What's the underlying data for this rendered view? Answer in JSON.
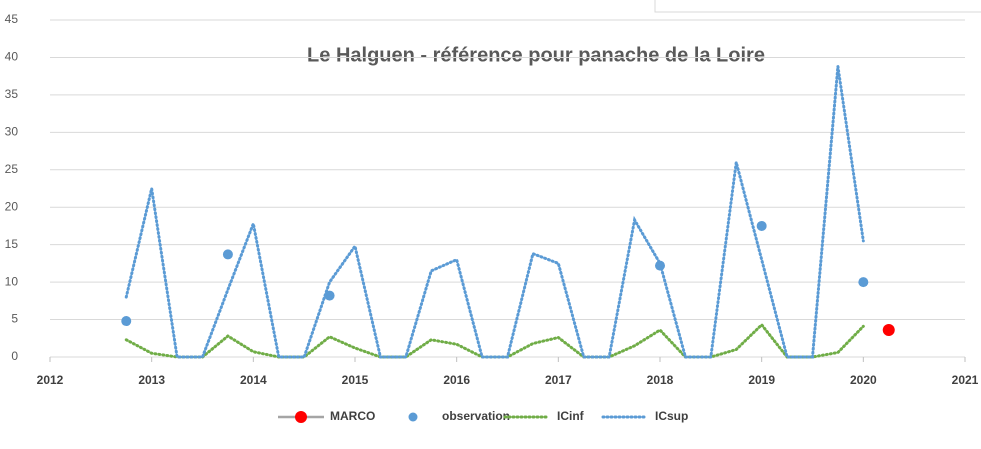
{
  "chart_data": {
    "type": "line",
    "title": "Le Halguen - référence pour panache de la Loire",
    "xlim": [
      2012,
      2021
    ],
    "xticks": [
      2012,
      2013,
      2014,
      2015,
      2016,
      2017,
      2018,
      2019,
      2020,
      2021
    ],
    "ylim": [
      0,
      45
    ],
    "yticks": [
      0,
      5,
      10,
      15,
      20,
      25,
      30,
      35,
      40,
      45
    ],
    "grid": true,
    "series": [
      {
        "name": "MARCO",
        "color": "#ff0000",
        "style": "marker",
        "x": [
          2020.25
        ],
        "values": [
          3.6
        ]
      },
      {
        "name": "observation",
        "color": "#5b9bd5",
        "style": "marker",
        "x": [
          2012.75,
          2013.75,
          2014.75,
          2018,
          2019,
          2020
        ],
        "values": [
          4.8,
          13.7,
          8.2,
          12.2,
          17.5,
          10
        ]
      },
      {
        "name": "ICinf",
        "color": "#70ad47",
        "style": "dotted",
        "x": [
          2012.75,
          2013,
          2013.25,
          2013.5,
          2013.75,
          2014,
          2014.25,
          2014.5,
          2014.75,
          2015,
          2015.25,
          2015.5,
          2015.75,
          2016,
          2016.25,
          2016.5,
          2016.75,
          2017,
          2017.25,
          2017.5,
          2017.75,
          2018,
          2018.25,
          2018.5,
          2018.75,
          2019,
          2019.25,
          2019.5,
          2019.75,
          2020
        ],
        "values": [
          2.3,
          0.5,
          0,
          0,
          2.8,
          0.7,
          0,
          0,
          2.7,
          1.2,
          0,
          0,
          2.3,
          1.7,
          0,
          0,
          1.8,
          2.6,
          0,
          0,
          1.5,
          3.6,
          0,
          0,
          1.0,
          4.3,
          0,
          0,
          0.6,
          4.1
        ]
      },
      {
        "name": "ICsup",
        "color": "#5b9bd5",
        "style": "dotted",
        "x": [
          2012.75,
          2013,
          2013.25,
          2013.5,
          2013.75,
          2014,
          2014.25,
          2014.5,
          2014.75,
          2015,
          2015.25,
          2015.5,
          2015.75,
          2016,
          2016.25,
          2016.5,
          2016.75,
          2017,
          2017.25,
          2017.5,
          2017.75,
          2018,
          2018.25,
          2018.5,
          2018.75,
          2019,
          2019.25,
          2019.5,
          2019.75,
          2020
        ],
        "values": [
          8,
          22.5,
          0,
          0,
          9,
          17.8,
          0,
          0,
          10,
          14.8,
          0,
          0,
          11.5,
          13,
          0,
          0,
          13.8,
          12.5,
          0,
          0,
          18.3,
          12.5,
          0,
          0,
          26,
          13,
          0,
          0,
          38.8,
          15.5
        ]
      }
    ]
  }
}
